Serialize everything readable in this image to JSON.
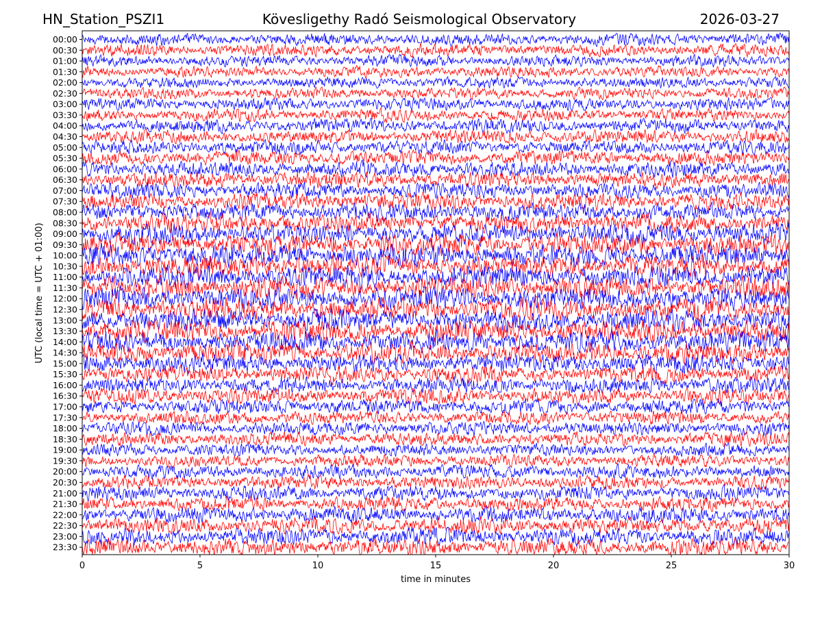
{
  "chart_data": {
    "type": "line",
    "title_left": "HN_Station_PSZI1",
    "title_center": "Kövesligethy Radó Seismological Observatory",
    "title_right": "2026-03-27",
    "xlabel": "time in minutes",
    "ylabel": "UTC (local time = UTC + 01:00)",
    "xlim": [
      0,
      30
    ],
    "xticks": [
      "0",
      "5",
      "10",
      "15",
      "20",
      "25",
      "30"
    ],
    "grid": false,
    "trace_colors": [
      "#0000ff",
      "#ff0000"
    ],
    "trace_labels": [
      "00:00",
      "00:30",
      "01:00",
      "01:30",
      "02:00",
      "02:30",
      "03:00",
      "03:30",
      "04:00",
      "04:30",
      "05:00",
      "05:30",
      "06:00",
      "06:30",
      "07:00",
      "07:30",
      "08:00",
      "08:30",
      "09:00",
      "09:30",
      "10:00",
      "10:30",
      "11:00",
      "11:30",
      "12:00",
      "12:30",
      "13:00",
      "13:30",
      "14:00",
      "14:30",
      "15:00",
      "15:30",
      "16:00",
      "16:30",
      "17:00",
      "17:30",
      "18:00",
      "18:30",
      "19:00",
      "19:30",
      "20:00",
      "20:30",
      "21:00",
      "21:30",
      "22:00",
      "22:30",
      "23:00",
      "23:30"
    ],
    "relative_amplitude": [
      0.55,
      0.55,
      0.5,
      0.5,
      0.5,
      0.5,
      0.55,
      0.55,
      0.6,
      0.6,
      0.6,
      0.65,
      0.7,
      0.7,
      0.7,
      0.75,
      0.8,
      0.85,
      0.9,
      0.95,
      1.0,
      1.0,
      1.0,
      1.0,
      1.0,
      1.0,
      1.0,
      1.0,
      0.95,
      0.9,
      0.85,
      0.75,
      0.7,
      0.7,
      0.65,
      0.6,
      0.6,
      0.6,
      0.55,
      0.55,
      0.6,
      0.6,
      0.65,
      0.65,
      0.7,
      0.7,
      0.75,
      0.8
    ]
  }
}
